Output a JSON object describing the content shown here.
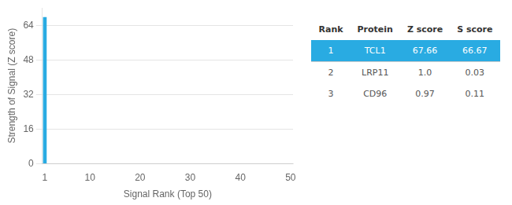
{
  "chart_data": {
    "type": "bar",
    "x": [
      1
    ],
    "values": [
      67.66
    ],
    "color": "#29abe2",
    "xlim": [
      0.5,
      50.5
    ],
    "xticks": [
      1,
      10,
      20,
      30,
      40,
      50
    ],
    "ylim": [
      0,
      72
    ],
    "yticks": [
      0,
      16,
      32,
      48,
      64
    ],
    "xlabel": "Signal Rank (Top 50)",
    "ylabel": "Strength of Signal (Z score)",
    "grid": "y",
    "table": {
      "columns": [
        "Rank",
        "Protein",
        "Z score",
        "S score"
      ],
      "rows": [
        [
          "1",
          "TCL1",
          "67.66",
          "66.67"
        ],
        [
          "2",
          "LRP11",
          "1.0",
          "0.03"
        ],
        [
          "3",
          "CD96",
          "0.97",
          "0.11"
        ]
      ]
    }
  }
}
